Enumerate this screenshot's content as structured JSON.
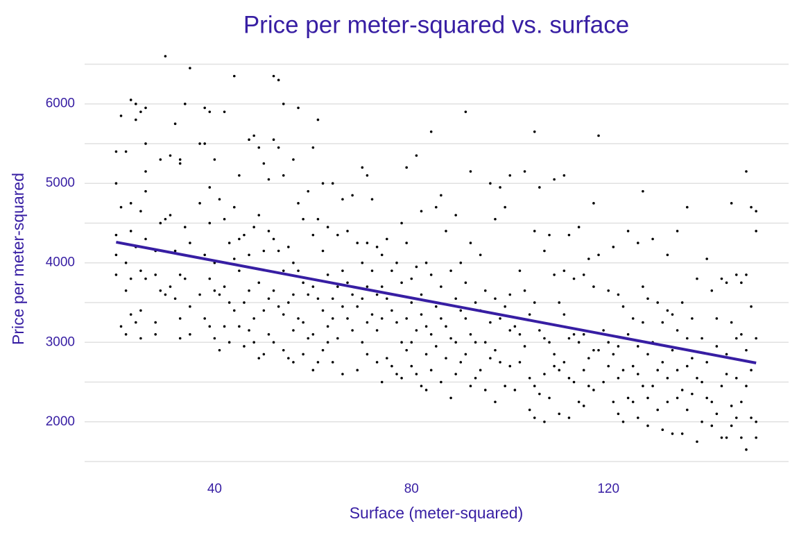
{
  "chart_data": {
    "type": "scatter",
    "title": "Price per meter-squared vs. surface",
    "x_label": "Surface (meter-squared)",
    "y_label": "Price per meter-squared",
    "text_color": "#371ea3",
    "grid": true,
    "xlim": [
      13.6,
      156.6
    ],
    "xticks": [
      40,
      80,
      120
    ],
    "ylim": [
      1500,
      6600
    ],
    "yticks": [
      2000,
      3000,
      4000,
      5000,
      6000
    ],
    "y_minor_ticks": [
      1500,
      2500,
      3500,
      4500,
      5500,
      6500
    ],
    "series": [
      {
        "color": "#000000",
        "x": [
          20,
          20,
          20,
          20,
          20,
          21,
          21,
          21,
          22,
          22,
          22,
          22,
          23,
          23,
          23,
          23,
          23,
          24,
          24,
          24,
          24,
          25,
          25,
          25,
          25,
          25,
          26,
          26,
          26,
          26,
          26,
          26,
          28,
          28,
          28,
          28,
          29,
          29,
          29,
          30,
          30,
          30,
          31,
          31,
          31,
          32,
          32,
          32,
          33,
          33,
          33,
          33,
          33,
          34,
          34,
          34,
          35,
          35,
          35,
          35,
          37,
          37,
          37,
          38,
          38,
          38,
          38,
          39,
          39,
          39,
          39,
          39,
          40,
          40,
          40,
          40,
          41,
          41,
          41,
          42,
          42,
          42,
          42,
          43,
          43,
          43,
          44,
          44,
          44,
          44,
          45,
          45,
          45,
          45,
          46,
          46,
          46,
          47,
          47,
          47,
          47,
          48,
          48,
          48,
          48,
          49,
          49,
          49,
          49,
          50,
          50,
          50,
          50,
          51,
          51,
          51,
          51,
          52,
          52,
          52,
          52,
          52,
          53,
          53,
          53,
          53,
          54,
          54,
          54,
          54,
          54,
          55,
          55,
          55,
          56,
          56,
          56,
          56,
          56,
          57,
          57,
          57,
          57,
          58,
          58,
          58,
          58,
          59,
          59,
          59,
          60,
          60,
          60,
          60,
          60,
          61,
          61,
          61,
          61,
          62,
          62,
          62,
          62,
          63,
          63,
          63,
          63,
          64,
          64,
          64,
          64,
          65,
          65,
          65,
          66,
          66,
          66,
          66,
          67,
          67,
          67,
          68,
          68,
          68,
          69,
          69,
          69,
          70,
          70,
          70,
          70,
          71,
          71,
          71,
          71,
          71,
          72,
          72,
          72,
          73,
          73,
          73,
          73,
          74,
          74,
          74,
          74,
          75,
          75,
          75,
          76,
          76,
          76,
          77,
          77,
          77,
          78,
          78,
          78,
          78,
          79,
          79,
          79,
          79,
          80,
          80,
          80,
          80,
          81,
          81,
          81,
          81,
          82,
          82,
          82,
          82,
          83,
          83,
          83,
          83,
          84,
          84,
          84,
          84,
          85,
          85,
          85,
          86,
          86,
          86,
          86,
          87,
          87,
          87,
          88,
          88,
          88,
          89,
          89,
          89,
          89,
          90,
          90,
          90,
          91,
          91,
          91,
          91,
          92,
          92,
          92,
          92,
          93,
          93,
          93,
          94,
          94,
          94,
          95,
          95,
          95,
          96,
          96,
          96,
          97,
          97,
          97,
          97,
          98,
          98,
          98,
          99,
          99,
          99,
          100,
          100,
          100,
          100,
          101,
          101,
          102,
          102,
          102,
          103,
          103,
          103,
          104,
          104,
          104,
          105,
          105,
          105,
          105,
          105,
          106,
          106,
          106,
          107,
          107,
          107,
          107,
          108,
          108,
          108,
          109,
          109,
          109,
          109,
          110,
          110,
          110,
          111,
          111,
          111,
          111,
          112,
          112,
          112,
          112,
          113,
          113,
          113,
          114,
          114,
          114,
          115,
          115,
          115,
          115,
          116,
          116,
          116,
          117,
          117,
          117,
          117,
          118,
          118,
          118,
          119,
          119,
          120,
          120,
          120,
          121,
          121,
          121,
          122,
          122,
          122,
          122,
          123,
          123,
          123,
          124,
          124,
          124,
          125,
          125,
          125,
          126,
          126,
          126,
          126,
          127,
          127,
          127,
          127,
          128,
          128,
          128,
          128,
          129,
          129,
          129,
          130,
          130,
          130,
          131,
          131,
          131,
          132,
          132,
          132,
          132,
          133,
          133,
          133,
          134,
          134,
          134,
          134,
          135,
          135,
          135,
          136,
          136,
          136,
          136,
          137,
          137,
          137,
          138,
          138,
          138,
          139,
          139,
          139,
          140,
          140,
          140,
          141,
          141,
          141,
          142,
          142,
          142,
          143,
          143,
          143,
          144,
          144,
          144,
          144,
          145,
          145,
          145,
          145,
          146,
          146,
          146,
          146,
          147,
          147,
          147,
          147,
          148,
          148,
          148,
          148,
          148,
          149,
          149,
          149,
          149,
          150,
          150,
          150,
          150,
          150
        ],
        "values": [
          5000,
          5400,
          4350,
          4100,
          3850,
          5850,
          3200,
          4700,
          5400,
          3100,
          4000,
          3650,
          6050,
          4750,
          3800,
          3350,
          4400,
          6000,
          5800,
          3250,
          4200,
          5900,
          4650,
          3900,
          3050,
          3400,
          5950,
          5500,
          5150,
          4900,
          3800,
          4300,
          3850,
          3250,
          4150,
          3100,
          5300,
          3650,
          4500,
          6600,
          4550,
          3600,
          5350,
          4600,
          3700,
          5750,
          4150,
          3550,
          5300,
          5250,
          3300,
          3850,
          3050,
          6000,
          3800,
          4450,
          6450,
          3450,
          4250,
          3100,
          5500,
          4750,
          3600,
          5950,
          5500,
          4100,
          3300,
          5900,
          4950,
          4500,
          3800,
          3200,
          5300,
          4000,
          3650,
          3050,
          4800,
          3600,
          2900,
          5900,
          4550,
          3700,
          3200,
          4250,
          3000,
          3500,
          6350,
          4700,
          4050,
          3400,
          5100,
          4300,
          3900,
          3200,
          4350,
          3500,
          2950,
          5550,
          4100,
          3650,
          3150,
          5600,
          4450,
          3300,
          3000,
          5450,
          4600,
          3750,
          2800,
          5250,
          4150,
          3400,
          2850,
          5050,
          4400,
          3100,
          3550,
          6350,
          5550,
          4300,
          3650,
          3000,
          6300,
          5450,
          4150,
          3450,
          6000,
          5100,
          3900,
          3350,
          2900,
          4200,
          3500,
          2800,
          5300,
          4000,
          3600,
          3150,
          2750,
          5950,
          4750,
          3900,
          3300,
          4550,
          3750,
          3250,
          2850,
          4900,
          3600,
          3050,
          5450,
          4350,
          3700,
          3100,
          2650,
          5800,
          4550,
          3550,
          2750,
          5000,
          4150,
          3400,
          2900,
          4450,
          3850,
          3200,
          3000,
          5000,
          3550,
          3300,
          2750,
          4350,
          3700,
          3050,
          4800,
          3900,
          3450,
          2600,
          4400,
          3750,
          3300,
          4850,
          3600,
          3150,
          4250,
          3450,
          2650,
          5200,
          4000,
          3550,
          3000,
          5100,
          4250,
          3700,
          3250,
          2850,
          4800,
          3900,
          3350,
          4200,
          3600,
          3150,
          2750,
          4100,
          3700,
          3300,
          2500,
          4300,
          3550,
          2800,
          3900,
          3400,
          2700,
          4000,
          3250,
          2600,
          4500,
          3750,
          3000,
          2550,
          5200,
          4250,
          3300,
          2900,
          3800,
          3500,
          3000,
          2700,
          5350,
          3950,
          3150,
          2600,
          4650,
          3600,
          3350,
          2450,
          4000,
          3200,
          2850,
          2400,
          5650,
          3850,
          3100,
          2650,
          4700,
          3450,
          2950,
          4850,
          3700,
          3300,
          2500,
          4400,
          3200,
          2800,
          3900,
          3050,
          2300,
          4600,
          3550,
          3000,
          2600,
          4000,
          3400,
          2750,
          5900,
          3750,
          3300,
          2850,
          5150,
          4250,
          3100,
          2450,
          3500,
          3000,
          2550,
          4100,
          3400,
          2650,
          3650,
          3000,
          2400,
          5000,
          3250,
          2800,
          4550,
          3550,
          2900,
          2250,
          4950,
          3300,
          2750,
          4700,
          3450,
          2450,
          5100,
          3600,
          3150,
          2700,
          3200,
          2400,
          3900,
          3100,
          2750,
          5150,
          3650,
          2950,
          3350,
          2550,
          2150,
          5650,
          4400,
          3500,
          2450,
          2050,
          4950,
          3150,
          2350,
          4150,
          3050,
          2600,
          2000,
          4350,
          3000,
          2300,
          5050,
          3850,
          2850,
          2700,
          3500,
          2650,
          2100,
          5100,
          3900,
          3350,
          2750,
          4350,
          3050,
          2550,
          2050,
          3800,
          3100,
          2500,
          4450,
          3000,
          2250,
          3850,
          3100,
          2650,
          2200,
          4050,
          2800,
          2450,
          4750,
          3700,
          2900,
          2400,
          5600,
          4100,
          2900,
          3150,
          2500,
          3650,
          3000,
          2700,
          4200,
          2850,
          2250,
          3600,
          2950,
          2550,
          2100,
          3450,
          2650,
          2000,
          4400,
          3100,
          2300,
          3300,
          2700,
          2250,
          4250,
          2950,
          2600,
          2050,
          4900,
          3700,
          3250,
          2450,
          3550,
          2850,
          2300,
          1950,
          4300,
          3000,
          2450,
          3500,
          2650,
          2150,
          3250,
          2750,
          1900,
          4100,
          3400,
          2550,
          2250,
          3350,
          2900,
          1850,
          4400,
          3150,
          2650,
          2300,
          3500,
          2400,
          1850,
          4700,
          3050,
          2700,
          2150,
          3300,
          2800,
          2350,
          3800,
          2550,
          1750,
          3050,
          2500,
          2000,
          4050,
          2750,
          2300,
          3650,
          2250,
          1950,
          3300,
          2950,
          2100,
          3800,
          2450,
          1800,
          3750,
          2850,
          2600,
          1800,
          4750,
          3250,
          2200,
          1950,
          3850,
          3050,
          2550,
          2050,
          3750,
          3100,
          2250,
          1800,
          5150,
          3850,
          2900,
          2450,
          1650,
          4700,
          3450,
          2650,
          2050,
          4650,
          4400,
          3050,
          1800,
          2000
        ]
      }
    ],
    "trend_line": {
      "color": "#371ea3",
      "x": [
        20,
        150
      ],
      "values": [
        4260,
        2740
      ]
    }
  }
}
